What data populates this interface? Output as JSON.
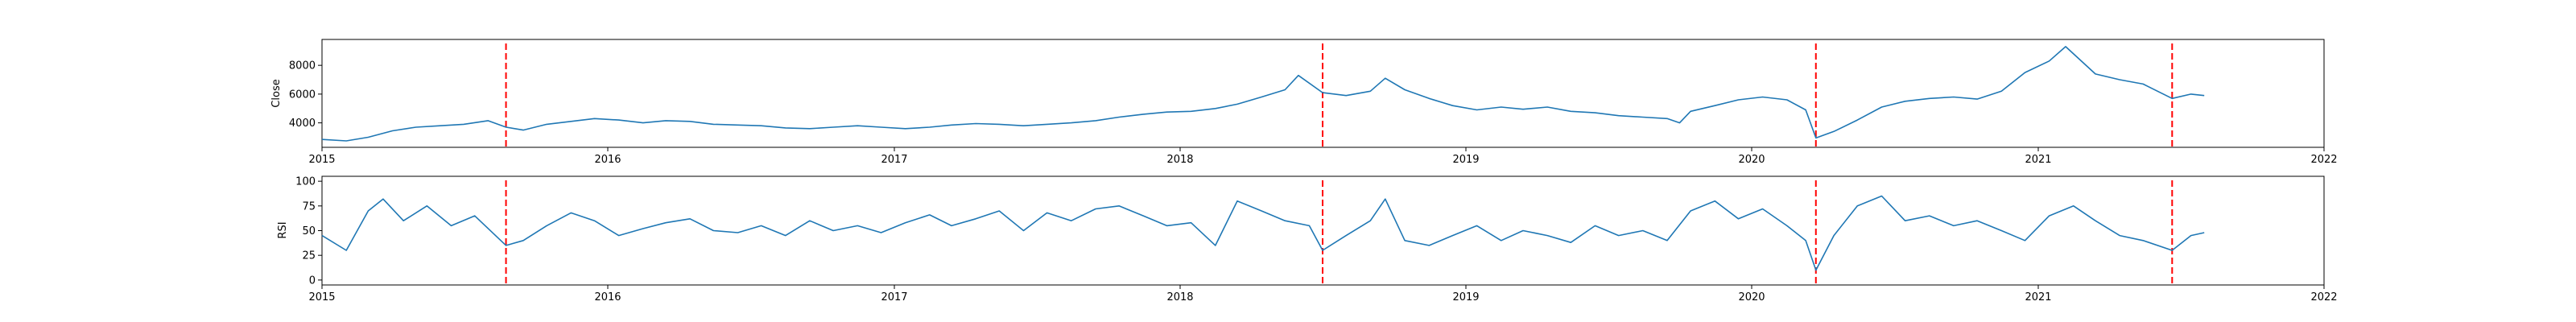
{
  "chart_data": [
    {
      "type": "line",
      "title": "",
      "xlabel": "",
      "ylabel": "Close",
      "xlim": [
        "2015-01-01",
        "2022-01-01"
      ],
      "ylim": [
        2300,
        9800
      ],
      "x_ticks": [
        "2015",
        "2016",
        "2017",
        "2018",
        "2019",
        "2020",
        "2021",
        "2022"
      ],
      "y_ticks": [
        4000,
        6000,
        8000
      ],
      "y_tick_labels": [
        "4000",
        "6000",
        "8000"
      ],
      "grid": false,
      "series_color": "#1f77b4",
      "vlines": [
        "2015-08-24",
        "2018-07-02",
        "2020-03-23",
        "2021-06-21"
      ],
      "vline_color": "#ff0000",
      "series": [
        {
          "x": [
            "2015-01-01",
            "2015-02-01",
            "2015-03-01",
            "2015-04-01",
            "2015-05-01",
            "2015-06-01",
            "2015-07-01",
            "2015-08-01",
            "2015-08-24",
            "2015-09-15",
            "2015-10-15",
            "2015-11-15",
            "2015-12-15",
            "2016-01-15",
            "2016-02-15",
            "2016-03-15",
            "2016-04-15",
            "2016-05-15",
            "2016-06-15",
            "2016-07-15",
            "2016-08-15",
            "2016-09-15",
            "2016-10-15",
            "2016-11-15",
            "2016-12-15",
            "2017-01-15",
            "2017-02-15",
            "2017-03-15",
            "2017-04-15",
            "2017-05-15",
            "2017-06-15",
            "2017-07-15",
            "2017-08-15",
            "2017-09-15",
            "2017-10-15",
            "2017-11-15",
            "2017-12-15",
            "2018-01-15",
            "2018-02-15",
            "2018-03-15",
            "2018-04-15",
            "2018-05-15",
            "2018-06-01",
            "2018-07-02",
            "2018-08-01",
            "2018-09-01",
            "2018-09-20",
            "2018-10-15",
            "2018-11-15",
            "2018-12-15",
            "2019-01-15",
            "2019-02-15",
            "2019-03-15",
            "2019-04-15",
            "2019-05-15",
            "2019-06-15",
            "2019-07-15",
            "2019-08-15",
            "2019-09-15",
            "2019-10-01",
            "2019-10-15",
            "2019-11-15",
            "2019-12-15",
            "2020-01-15",
            "2020-02-15",
            "2020-03-10",
            "2020-03-23",
            "2020-04-15",
            "2020-05-15",
            "2020-06-15",
            "2020-07-15",
            "2020-08-15",
            "2020-09-15",
            "2020-10-15",
            "2020-11-15",
            "2020-12-15",
            "2021-01-15",
            "2021-02-05",
            "2021-03-01",
            "2021-03-15",
            "2021-04-15",
            "2021-05-15",
            "2021-06-21",
            "2021-07-15",
            "2021-08-01"
          ],
          "y": [
            2850,
            2750,
            3000,
            3450,
            3700,
            3800,
            3900,
            4150,
            3700,
            3500,
            3900,
            4100,
            4300,
            4200,
            4000,
            4150,
            4100,
            3900,
            3850,
            3800,
            3650,
            3600,
            3700,
            3800,
            3700,
            3600,
            3700,
            3850,
            3950,
            3900,
            3800,
            3900,
            4000,
            4150,
            4400,
            4600,
            4750,
            4800,
            5000,
            5300,
            5800,
            6300,
            7300,
            6100,
            5900,
            6200,
            7100,
            6300,
            5700,
            5200,
            4900,
            5100,
            4950,
            5100,
            4800,
            4700,
            4500,
            4400,
            4300,
            4000,
            4800,
            5200,
            5600,
            5800,
            5600,
            4900,
            2950,
            3400,
            4200,
            5100,
            5500,
            5700,
            5800,
            5650,
            6200,
            7500,
            8300,
            9300,
            8100,
            7400,
            7000,
            6700,
            5700,
            6000,
            5900
          ]
        }
      ]
    },
    {
      "type": "line",
      "title": "",
      "xlabel": "",
      "ylabel": "RSI",
      "xlim": [
        "2015-01-01",
        "2022-01-01"
      ],
      "ylim": [
        -5,
        105
      ],
      "x_ticks": [
        "2015",
        "2016",
        "2017",
        "2018",
        "2019",
        "2020",
        "2021",
        "2022"
      ],
      "y_ticks": [
        0,
        25,
        50,
        75,
        100
      ],
      "y_tick_labels": [
        "0",
        "25",
        "50",
        "75",
        "100"
      ],
      "grid": false,
      "series_color": "#1f77b4",
      "vlines": [
        "2015-08-24",
        "2018-07-02",
        "2020-03-23",
        "2021-06-21"
      ],
      "vline_color": "#ff0000",
      "series": [
        {
          "x": [
            "2015-01-01",
            "2015-02-01",
            "2015-03-01",
            "2015-03-20",
            "2015-04-15",
            "2015-05-15",
            "2015-06-15",
            "2015-07-15",
            "2015-08-24",
            "2015-09-15",
            "2015-10-15",
            "2015-11-15",
            "2015-12-15",
            "2016-01-15",
            "2016-02-15",
            "2016-03-15",
            "2016-04-15",
            "2016-05-15",
            "2016-06-15",
            "2016-07-15",
            "2016-08-15",
            "2016-09-15",
            "2016-10-15",
            "2016-11-15",
            "2016-12-15",
            "2017-01-15",
            "2017-02-15",
            "2017-03-15",
            "2017-04-15",
            "2017-05-15",
            "2017-06-15",
            "2017-07-15",
            "2017-08-15",
            "2017-09-15",
            "2017-10-15",
            "2017-11-15",
            "2017-12-15",
            "2018-01-15",
            "2018-02-15",
            "2018-03-15",
            "2018-04-15",
            "2018-05-15",
            "2018-06-15",
            "2018-07-02",
            "2018-08-01",
            "2018-09-01",
            "2018-09-20",
            "2018-10-15",
            "2018-11-15",
            "2018-12-15",
            "2019-01-15",
            "2019-02-15",
            "2019-03-15",
            "2019-04-15",
            "2019-05-15",
            "2019-06-15",
            "2019-07-15",
            "2019-08-15",
            "2019-09-15",
            "2019-10-15",
            "2019-11-15",
            "2019-12-15",
            "2020-01-15",
            "2020-02-15",
            "2020-03-10",
            "2020-03-23",
            "2020-04-15",
            "2020-05-15",
            "2020-06-15",
            "2020-07-15",
            "2020-08-15",
            "2020-09-15",
            "2020-10-15",
            "2020-11-15",
            "2020-12-15",
            "2021-01-15",
            "2021-02-15",
            "2021-03-15",
            "2021-04-15",
            "2021-05-15",
            "2021-06-21",
            "2021-07-15",
            "2021-08-01"
          ],
          "y": [
            45,
            30,
            70,
            82,
            60,
            75,
            55,
            65,
            35,
            40,
            55,
            68,
            60,
            45,
            52,
            58,
            62,
            50,
            48,
            55,
            45,
            60,
            50,
            55,
            48,
            58,
            66,
            55,
            62,
            70,
            50,
            68,
            60,
            72,
            75,
            65,
            55,
            58,
            35,
            80,
            70,
            60,
            55,
            30,
            45,
            60,
            82,
            40,
            35,
            45,
            55,
            40,
            50,
            45,
            38,
            55,
            45,
            50,
            40,
            70,
            80,
            62,
            72,
            55,
            40,
            10,
            45,
            75,
            85,
            60,
            65,
            55,
            60,
            50,
            40,
            65,
            75,
            60,
            45,
            40,
            30,
            45,
            48
          ]
        }
      ]
    }
  ]
}
